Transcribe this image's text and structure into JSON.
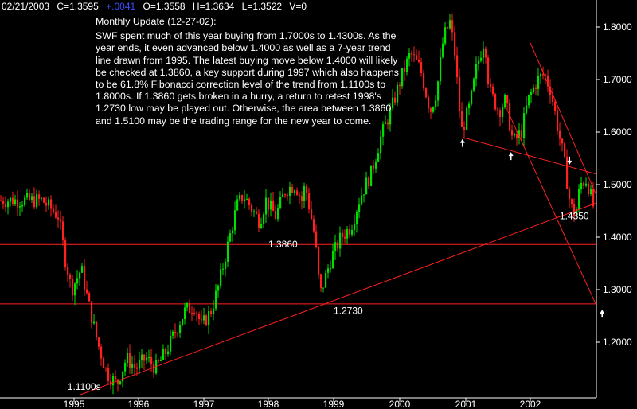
{
  "header": {
    "date": "02/21/2003",
    "close": "C=1.3595",
    "change": "+.0041",
    "open": "O=1.3558",
    "high": "H=1.3634",
    "low": "L=1.3522",
    "volume": "V=0"
  },
  "commentary": {
    "title": "Monthly Update (12-27-02):",
    "body": "SWF spent much of this year buying from 1.7000s to 1.4300s. As the year ends, it even advanced below 1.4000 as well as a 7-year trend line drawn from 1995. The latest buying move below 1.4000 will likely be checked at 1.3860, a key support during 1997 which also happens to be 61.8% Fibonacci correction level of the trend from 1.1100s to 1.8000s. If 1.3860 gets broken in a hurry, a return to retest 1998's 1.2730 low may be played out. Otherwise, the area between 1.3860 and 1.5100 may be the trading range for the new year to come."
  },
  "colors": {
    "up": "#00e000",
    "down": "#ff2020",
    "trend": "#ff2020",
    "text": "#ffffff",
    "background": "#000000",
    "arrow": "#ffffff"
  },
  "chart_data": {
    "type": "candlestick",
    "title": "",
    "xlabel": "",
    "ylabel": "",
    "x_range": [
      1994.5,
      2003.15
    ],
    "ylim": [
      1.1,
      1.86
    ],
    "x_ticks": [
      "1995",
      "1996",
      "1997",
      "1998",
      "1999",
      "2000",
      "2001",
      "2002"
    ],
    "y_ticks": [
      "1.8000",
      "1.7000",
      "1.6000",
      "1.5000",
      "1.4000",
      "1.3000",
      "1.2000"
    ],
    "path": [
      [
        1994.5,
        1.47
      ],
      [
        1994.75,
        1.44
      ],
      [
        1994.85,
        1.36
      ],
      [
        1994.95,
        1.3
      ],
      [
        1995.1,
        1.34
      ],
      [
        1995.2,
        1.28
      ],
      [
        1995.35,
        1.2
      ],
      [
        1995.5,
        1.14
      ],
      [
        1995.65,
        1.12
      ],
      [
        1995.8,
        1.17
      ],
      [
        1995.95,
        1.15
      ],
      [
        1996.1,
        1.17
      ],
      [
        1996.25,
        1.15
      ],
      [
        1996.4,
        1.18
      ],
      [
        1996.55,
        1.22
      ],
      [
        1996.7,
        1.26
      ],
      [
        1996.85,
        1.27
      ],
      [
        1996.95,
        1.23
      ],
      [
        1997.1,
        1.26
      ],
      [
        1997.2,
        1.3
      ],
      [
        1997.35,
        1.38
      ],
      [
        1997.5,
        1.46
      ],
      [
        1997.6,
        1.48
      ],
      [
        1997.75,
        1.45
      ],
      [
        1997.85,
        1.43
      ],
      [
        1997.95,
        1.47
      ],
      [
        1998.1,
        1.44
      ],
      [
        1998.25,
        1.49
      ],
      [
        1998.4,
        1.5
      ],
      [
        1998.5,
        1.47
      ],
      [
        1998.55,
        1.5
      ],
      [
        1998.7,
        1.4
      ],
      [
        1998.78,
        1.29
      ],
      [
        1998.95,
        1.36
      ],
      [
        1999.1,
        1.4
      ],
      [
        1999.25,
        1.42
      ],
      [
        1999.4,
        1.48
      ],
      [
        1999.55,
        1.52
      ],
      [
        1999.7,
        1.59
      ],
      [
        1999.85,
        1.64
      ],
      [
        2000.0,
        1.7
      ],
      [
        2000.15,
        1.75
      ],
      [
        2000.3,
        1.72
      ],
      [
        2000.45,
        1.64
      ],
      [
        2000.55,
        1.68
      ],
      [
        2000.65,
        1.78
      ],
      [
        2000.75,
        1.81
      ],
      [
        2000.82,
        1.75
      ],
      [
        2000.92,
        1.6
      ],
      [
        2001.05,
        1.65
      ],
      [
        2001.15,
        1.72
      ],
      [
        2001.28,
        1.78
      ],
      [
        2001.35,
        1.68
      ],
      [
        2001.5,
        1.64
      ],
      [
        2001.6,
        1.66
      ],
      [
        2001.72,
        1.58
      ],
      [
        2001.85,
        1.6
      ],
      [
        2001.95,
        1.66
      ],
      [
        2002.1,
        1.7
      ],
      [
        2002.2,
        1.71
      ],
      [
        2002.3,
        1.68
      ],
      [
        2002.42,
        1.6
      ],
      [
        2002.5,
        1.55
      ],
      [
        2002.6,
        1.46
      ],
      [
        2002.68,
        1.44
      ],
      [
        2002.75,
        1.5
      ],
      [
        2002.85,
        1.51
      ],
      [
        2002.95,
        1.46
      ],
      [
        2003.05,
        1.4
      ],
      [
        2003.12,
        1.36
      ]
    ],
    "horizontal_lines": [
      1.386,
      1.273
    ],
    "trend_lines": [
      {
        "from": [
          1995.1,
          1.1
        ],
        "to": [
          2003.15,
          1.465
        ]
      },
      {
        "from": [
          2000.95,
          1.59
        ],
        "to": [
          2003.15,
          1.52
        ]
      },
      {
        "from": [
          2002.0,
          1.77
        ],
        "to": [
          2003.15,
          1.48
        ]
      },
      {
        "from": [
          2001.65,
          1.64
        ],
        "to": [
          2003.15,
          1.27
        ]
      }
    ],
    "annotations": [
      {
        "text": "1.1100s",
        "x": 1994.9,
        "y": 1.115
      },
      {
        "text": "1.3860",
        "x": 1998.0,
        "y": 1.386
      },
      {
        "text": "1.2730",
        "x": 1999.0,
        "y": 1.26
      },
      {
        "text": "1.4350",
        "x": 2002.45,
        "y": 1.44
      }
    ],
    "arrows": [
      {
        "x": 2000.95,
        "y": 1.59,
        "direction": "up"
      },
      {
        "x": 2001.7,
        "y": 1.565,
        "direction": "up"
      },
      {
        "x": 2002.6,
        "y": 1.535,
        "direction": "down"
      },
      {
        "x": 2003.1,
        "y": 1.265,
        "direction": "up"
      }
    ]
  }
}
